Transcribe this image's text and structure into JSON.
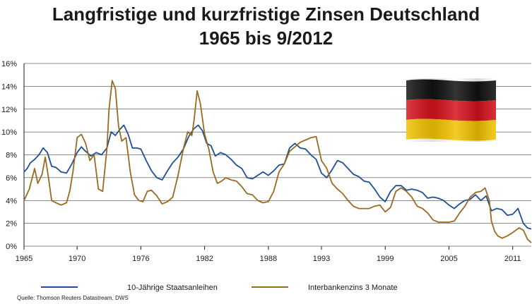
{
  "page": {
    "title_line1": "Langfristige und kurzfristige Zinsen Deutschland",
    "title_line2": "1965 bis 9/2012",
    "source": "Quelle: Thomson Reuters Datastream, DWS"
  },
  "colors": {
    "series_10y": "#1f4e99",
    "series_3m": "#9a6a1f",
    "flag_black": "#111111",
    "flag_red": "#d4121a",
    "flag_gold": "#f2c300",
    "grid": "#1a1a1a"
  },
  "chart_data": {
    "type": "line",
    "title": "Langfristige und kurzfristige Zinsen Deutschland 1965 bis 9/2012",
    "xlim": [
      1965,
      2012.75
    ],
    "ylim": [
      0,
      16
    ],
    "y_ticks": [
      0,
      2,
      4,
      6,
      8,
      10,
      12,
      14,
      16
    ],
    "y_tick_labels": [
      "0%",
      "2%",
      "4%",
      "6%",
      "8%",
      "10%",
      "12%",
      "14%",
      "16%"
    ],
    "x_ticks": [
      1965,
      1970,
      1976,
      1982,
      1988,
      1993,
      1999,
      2005,
      2011
    ],
    "x_tick_labels": [
      "1965",
      "1970",
      "1976",
      "1982",
      "1988",
      "1993",
      "1999",
      "2005",
      "2011"
    ],
    "grid": "horizontal",
    "legend_position": "bottom",
    "series": [
      {
        "name": "10-Jährige Staatsanleihen",
        "x": [
          1965.0,
          1965.3,
          1965.6,
          1966.0,
          1966.4,
          1966.8,
          1967.2,
          1967.6,
          1968.0,
          1968.5,
          1969.0,
          1969.5,
          1970.0,
          1970.4,
          1970.8,
          1971.3,
          1971.8,
          1972.3,
          1972.8,
          1973.2,
          1973.6,
          1974.0,
          1974.4,
          1974.8,
          1975.2,
          1975.6,
          1976.0,
          1976.5,
          1977.0,
          1977.5,
          1978.0,
          1978.5,
          1979.0,
          1979.5,
          1980.0,
          1980.5,
          1981.0,
          1981.4,
          1981.8,
          1982.2,
          1982.6,
          1983.0,
          1983.5,
          1984.0,
          1984.5,
          1985.0,
          1985.5,
          1986.0,
          1986.5,
          1987.0,
          1987.5,
          1988.0,
          1988.5,
          1989.0,
          1989.5,
          1990.0,
          1990.5,
          1991.0,
          1991.5,
          1992.0,
          1992.5,
          1993.0,
          1993.5,
          1994.0,
          1994.5,
          1995.0,
          1995.5,
          1996.0,
          1996.5,
          1997.0,
          1997.5,
          1998.0,
          1998.5,
          1999.0,
          1999.5,
          2000.0,
          2000.5,
          2001.0,
          2001.5,
          2002.0,
          2002.5,
          2003.0,
          2003.5,
          2004.0,
          2004.5,
          2005.0,
          2005.5,
          2006.0,
          2006.5,
          2007.0,
          2007.5,
          2008.0,
          2008.5,
          2009.0,
          2009.5,
          2010.0,
          2010.5,
          2011.0,
          2011.5,
          2012.0,
          2012.4,
          2012.75
        ],
        "values": [
          6.5,
          6.8,
          7.3,
          7.6,
          8.0,
          8.6,
          8.2,
          7.0,
          6.9,
          6.5,
          6.4,
          7.2,
          8.2,
          8.7,
          8.3,
          7.9,
          8.2,
          8.0,
          8.6,
          10.0,
          9.7,
          10.2,
          10.6,
          9.8,
          8.6,
          8.6,
          8.5,
          7.5,
          6.6,
          6.0,
          5.8,
          6.6,
          7.3,
          7.8,
          8.5,
          9.6,
          10.3,
          10.6,
          10.1,
          9.0,
          8.8,
          7.9,
          8.2,
          8.0,
          7.6,
          7.1,
          6.8,
          6.0,
          5.9,
          6.2,
          6.5,
          6.2,
          6.6,
          7.1,
          7.2,
          8.6,
          9.0,
          8.6,
          8.5,
          8.0,
          7.6,
          6.4,
          6.0,
          6.7,
          7.5,
          7.3,
          6.8,
          6.3,
          6.1,
          5.7,
          5.6,
          5.0,
          4.3,
          3.9,
          4.8,
          5.3,
          5.3,
          4.9,
          5.0,
          4.9,
          4.7,
          4.2,
          4.3,
          4.2,
          4.0,
          3.6,
          3.3,
          3.7,
          4.0,
          4.1,
          4.5,
          4.0,
          4.4,
          3.1,
          3.3,
          3.2,
          2.7,
          2.8,
          3.3,
          2.0,
          1.6,
          1.5
        ]
      },
      {
        "name": "Interbankenzins 3 Monate",
        "x": [
          1965.0,
          1965.5,
          1966.0,
          1966.3,
          1966.7,
          1967.0,
          1967.3,
          1967.6,
          1968.0,
          1968.5,
          1969.0,
          1969.3,
          1969.6,
          1970.0,
          1970.4,
          1970.8,
          1971.2,
          1971.6,
          1972.0,
          1972.4,
          1972.8,
          1973.0,
          1973.3,
          1973.6,
          1973.9,
          1974.2,
          1974.6,
          1975.0,
          1975.4,
          1975.8,
          1976.2,
          1976.6,
          1977.0,
          1977.5,
          1978.0,
          1978.5,
          1979.0,
          1979.5,
          1980.0,
          1980.4,
          1980.8,
          1981.0,
          1981.3,
          1981.6,
          1982.0,
          1982.4,
          1982.8,
          1983.2,
          1983.6,
          1984.0,
          1984.5,
          1985.0,
          1985.5,
          1986.0,
          1986.5,
          1987.0,
          1987.5,
          1988.0,
          1988.5,
          1989.0,
          1989.5,
          1990.0,
          1990.5,
          1991.0,
          1991.5,
          1992.0,
          1992.5,
          1993.0,
          1993.5,
          1994.0,
          1994.5,
          1995.0,
          1995.5,
          1996.0,
          1996.5,
          1997.0,
          1997.5,
          1998.0,
          1998.5,
          1999.0,
          1999.5,
          2000.0,
          2000.5,
          2001.0,
          2001.5,
          2002.0,
          2002.5,
          2003.0,
          2003.5,
          2004.0,
          2004.5,
          2005.0,
          2005.5,
          2006.0,
          2006.5,
          2007.0,
          2007.5,
          2008.0,
          2008.4,
          2008.8,
          2009.0,
          2009.3,
          2009.6,
          2010.0,
          2010.5,
          2011.0,
          2011.3,
          2011.6,
          2012.0,
          2012.4,
          2012.75
        ],
        "values": [
          4.0,
          5.0,
          6.8,
          5.5,
          6.3,
          7.8,
          6.0,
          4.0,
          3.8,
          3.6,
          3.8,
          4.8,
          6.5,
          9.5,
          9.8,
          9.0,
          7.5,
          8.0,
          5.0,
          4.8,
          8.5,
          12.0,
          14.5,
          13.8,
          10.5,
          9.2,
          9.5,
          6.5,
          4.5,
          4.0,
          3.9,
          4.8,
          4.9,
          4.4,
          3.7,
          3.9,
          4.3,
          6.2,
          8.5,
          10.0,
          9.7,
          11.0,
          13.6,
          12.5,
          9.8,
          8.5,
          6.5,
          5.5,
          5.7,
          6.0,
          5.8,
          5.7,
          5.2,
          4.6,
          4.5,
          4.0,
          3.8,
          3.9,
          4.8,
          6.5,
          7.2,
          8.3,
          8.7,
          9.1,
          9.3,
          9.5,
          9.6,
          7.5,
          6.8,
          5.5,
          5.0,
          4.6,
          4.0,
          3.5,
          3.3,
          3.3,
          3.3,
          3.5,
          3.6,
          3.0,
          3.4,
          4.8,
          5.1,
          4.8,
          4.3,
          3.5,
          3.3,
          2.9,
          2.3,
          2.1,
          2.1,
          2.1,
          2.2,
          2.9,
          3.5,
          4.3,
          4.7,
          4.8,
          5.1,
          4.0,
          2.2,
          1.3,
          0.9,
          0.7,
          0.9,
          1.2,
          1.4,
          1.6,
          1.4,
          0.6,
          0.3
        ]
      }
    ]
  }
}
